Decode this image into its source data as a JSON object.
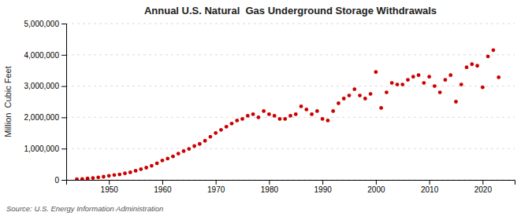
{
  "chart_data": {
    "type": "scatter",
    "title": "Annual U.S. Natural  Gas Underground Storage Withdrawals",
    "ylabel": "Million  Cubic Feet",
    "source": "Source: U.S. Energy Information Administration",
    "color": "#cc0000",
    "grid": true,
    "xlim": [
      1942,
      2026
    ],
    "xticks": [
      1950,
      1960,
      1970,
      1980,
      1990,
      2000,
      2010,
      2020
    ],
    "ylim": [
      0,
      5000000
    ],
    "yticks": [
      0,
      {
        "value": 1000000,
        "label": "1,000,000"
      },
      {
        "value": 2000000,
        "label": "2,000,000"
      },
      {
        "value": 3000000,
        "label": "3,000,000"
      },
      {
        "value": 4000000,
        "label": "4,000,000"
      },
      {
        "value": 5000000,
        "label": "5,000,000"
      }
    ],
    "x": [
      1944,
      1945,
      1946,
      1947,
      1948,
      1949,
      1950,
      1951,
      1952,
      1953,
      1954,
      1955,
      1956,
      1957,
      1958,
      1959,
      1960,
      1961,
      1962,
      1963,
      1964,
      1965,
      1966,
      1967,
      1968,
      1969,
      1970,
      1971,
      1972,
      1973,
      1974,
      1975,
      1976,
      1977,
      1978,
      1979,
      1980,
      1981,
      1982,
      1983,
      1984,
      1985,
      1986,
      1987,
      1988,
      1989,
      1990,
      1991,
      1992,
      1993,
      1994,
      1995,
      1996,
      1997,
      1998,
      1999,
      2000,
      2001,
      2002,
      2003,
      2004,
      2005,
      2006,
      2007,
      2008,
      2009,
      2010,
      2011,
      2012,
      2013,
      2014,
      2015,
      2016,
      2017,
      2018,
      2019,
      2020,
      2021,
      2022,
      2023
    ],
    "values": [
      20000,
      30000,
      45000,
      60000,
      80000,
      100000,
      130000,
      155000,
      175000,
      210000,
      240000,
      290000,
      340000,
      390000,
      450000,
      530000,
      620000,
      680000,
      750000,
      840000,
      920000,
      990000,
      1080000,
      1150000,
      1250000,
      1380000,
      1500000,
      1600000,
      1700000,
      1800000,
      1900000,
      1950000,
      2050000,
      2100000,
      2000000,
      2200000,
      2100000,
      2050000,
      1950000,
      1950000,
      2050000,
      2100000,
      2350000,
      2250000,
      2100000,
      2200000,
      1950000,
      1900000,
      2200000,
      2450000,
      2600000,
      2700000,
      2900000,
      2700000,
      2600000,
      2750000,
      3450000,
      2300000,
      2800000,
      3100000,
      3050000,
      3050000,
      3200000,
      3300000,
      3350000,
      3100000,
      3300000,
      3000000,
      2800000,
      3200000,
      3350000,
      2500000,
      3050000,
      3600000,
      3700000,
      3650000,
      2960000,
      3950000,
      4150000,
      3280000
    ]
  }
}
